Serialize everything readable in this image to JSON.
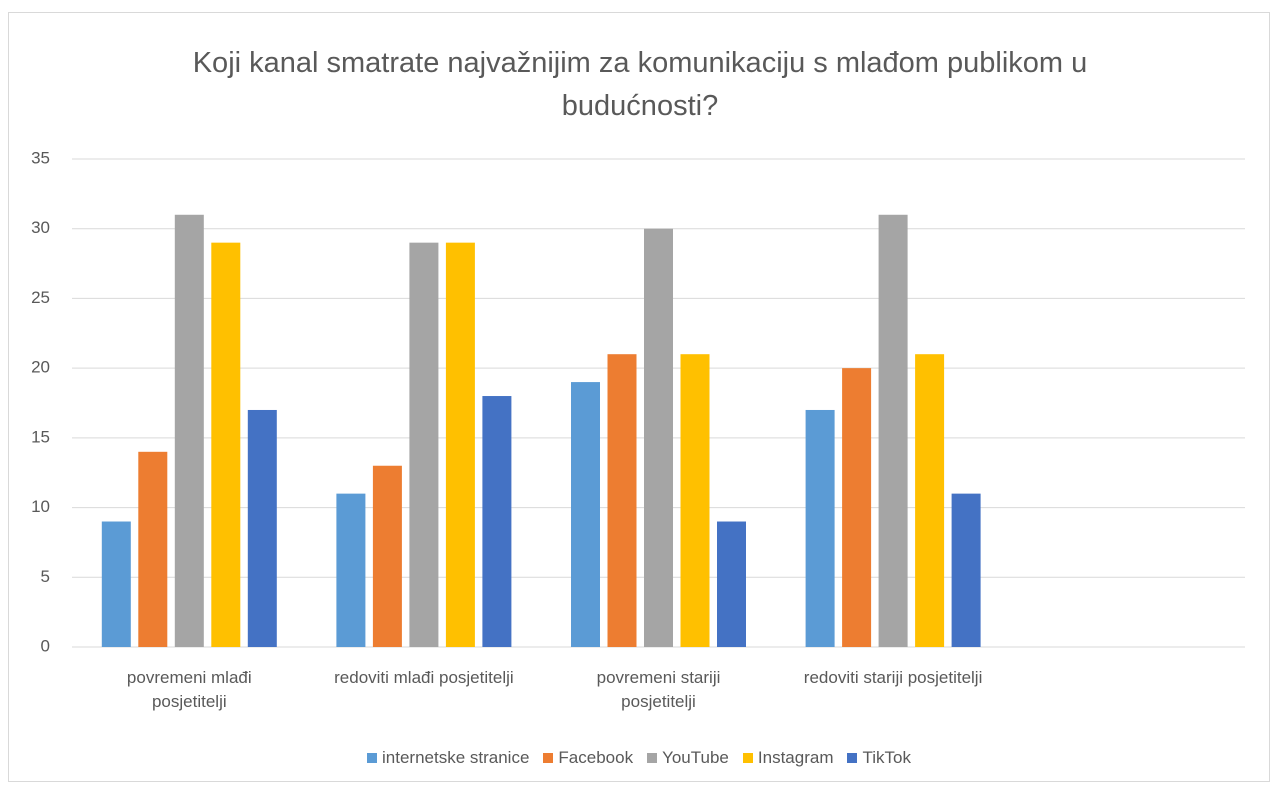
{
  "chart_data": {
    "type": "bar",
    "title": "Koji kanal smatrate najvažnijim za komunikaciju s mlađom publikom u budućnosti?",
    "categories": [
      "povremeni mlađi posjetitelji",
      "redoviti mlađi posjetitelji",
      "povremeni stariji posjetitelji",
      "redoviti stariji posjetitelji",
      null
    ],
    "series": [
      {
        "name": "internetske stranice",
        "color": "#5b9bd5",
        "values": [
          9,
          11,
          19,
          17,
          null
        ]
      },
      {
        "name": "Facebook",
        "color": "#ed7d31",
        "values": [
          14,
          13,
          21,
          20,
          null
        ]
      },
      {
        "name": "YouTube",
        "color": "#a5a5a5",
        "values": [
          31,
          29,
          30,
          31,
          null
        ]
      },
      {
        "name": "Instagram",
        "color": "#ffc000",
        "values": [
          29,
          29,
          21,
          21,
          null
        ]
      },
      {
        "name": "TikTok",
        "color": "#4472c4",
        "values": [
          17,
          18,
          9,
          11,
          null
        ]
      }
    ],
    "ylim": [
      0,
      35
    ],
    "yticks": [
      0,
      5,
      10,
      15,
      20,
      25,
      30,
      35
    ],
    "grid": true,
    "legend": "bottom"
  }
}
